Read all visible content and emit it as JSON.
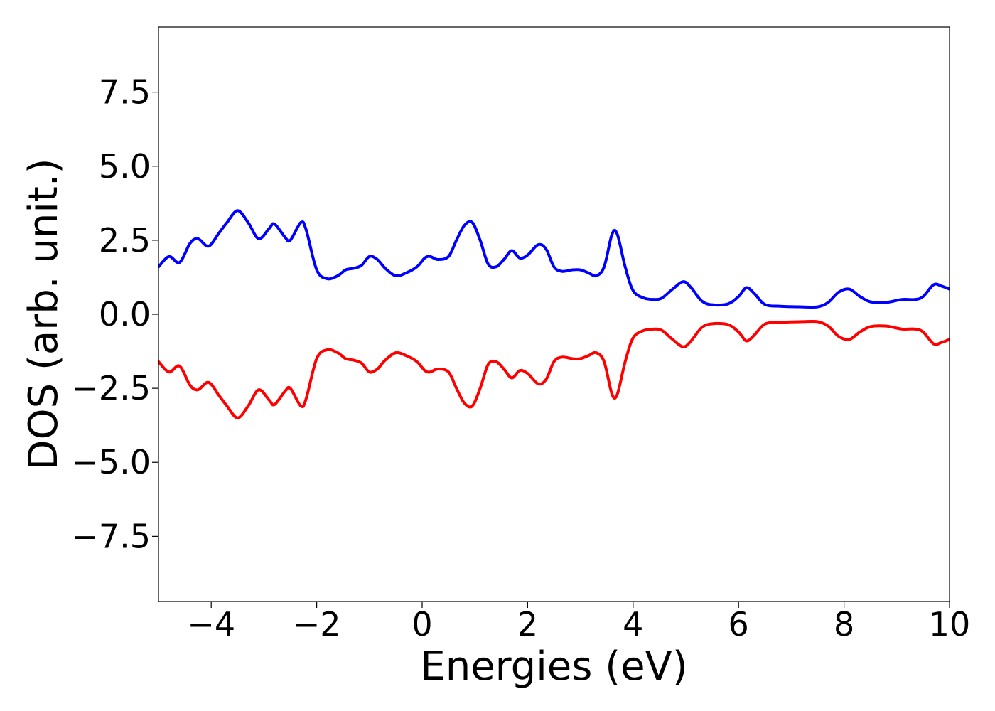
{
  "chart_data": {
    "type": "line",
    "title": "",
    "xlabel": "Energies (eV)",
    "ylabel": "DOS (arb. unit.)",
    "xlim": [
      -5,
      10
    ],
    "ylim": [
      -9.7,
      9.7
    ],
    "grid": false,
    "x_ticks": [
      -4,
      -2,
      0,
      2,
      4,
      6,
      8,
      10
    ],
    "x_tick_labels": [
      "−4",
      "−2",
      "0",
      "2",
      "4",
      "6",
      "8",
      "10"
    ],
    "y_ticks": [
      7.5,
      5.0,
      2.5,
      0.0,
      -2.5,
      -5.0,
      -7.5
    ],
    "y_tick_labels": [
      "7.5",
      "5.0",
      "2.5",
      "0.0",
      "−2.5",
      "−5.0",
      "−7.5"
    ],
    "series": [
      {
        "color": "#0000ff",
        "x": [
          -5.0,
          -4.8,
          -4.6,
          -4.4,
          -4.25,
          -4.05,
          -3.85,
          -3.7,
          -3.5,
          -3.3,
          -3.1,
          -2.9,
          -2.8,
          -2.6,
          -2.5,
          -2.3,
          -2.2,
          -2.0,
          -1.8,
          -1.6,
          -1.45,
          -1.3,
          -1.15,
          -1.0,
          -0.85,
          -0.7,
          -0.5,
          -0.3,
          -0.1,
          0.05,
          0.15,
          0.3,
          0.5,
          0.65,
          0.8,
          0.95,
          1.1,
          1.25,
          1.4,
          1.55,
          1.7,
          1.85,
          2.0,
          2.2,
          2.35,
          2.5,
          2.65,
          2.85,
          3.0,
          3.15,
          3.3,
          3.45,
          3.6,
          3.7,
          3.85,
          4.0,
          4.2,
          4.4,
          4.55,
          4.75,
          4.95,
          5.1,
          5.3,
          5.5,
          5.8,
          6.0,
          6.15,
          6.3,
          6.5,
          6.8,
          7.2,
          7.5,
          7.7,
          7.9,
          8.1,
          8.3,
          8.5,
          8.8,
          9.1,
          9.35,
          9.5,
          9.7,
          9.85,
          10.0
        ],
        "values": [
          1.6,
          1.95,
          1.75,
          2.4,
          2.55,
          2.3,
          2.75,
          3.1,
          3.5,
          3.1,
          2.55,
          2.9,
          3.05,
          2.6,
          2.5,
          3.1,
          2.85,
          1.5,
          1.2,
          1.3,
          1.5,
          1.55,
          1.65,
          1.95,
          1.85,
          1.55,
          1.3,
          1.4,
          1.6,
          1.9,
          1.95,
          1.85,
          1.95,
          2.5,
          3.0,
          3.1,
          2.5,
          1.7,
          1.6,
          1.85,
          2.15,
          1.9,
          2.0,
          2.35,
          2.2,
          1.6,
          1.45,
          1.5,
          1.5,
          1.4,
          1.3,
          1.6,
          2.7,
          2.7,
          1.6,
          0.8,
          0.55,
          0.5,
          0.55,
          0.85,
          1.1,
          0.9,
          0.45,
          0.32,
          0.35,
          0.6,
          0.9,
          0.7,
          0.33,
          0.27,
          0.25,
          0.25,
          0.4,
          0.75,
          0.85,
          0.6,
          0.42,
          0.4,
          0.5,
          0.5,
          0.6,
          1.0,
          0.95,
          0.85
        ]
      },
      {
        "color": "#ff0000",
        "x": [
          -5.0,
          -4.8,
          -4.6,
          -4.4,
          -4.25,
          -4.05,
          -3.85,
          -3.7,
          -3.5,
          -3.3,
          -3.1,
          -2.9,
          -2.8,
          -2.6,
          -2.5,
          -2.3,
          -2.2,
          -2.0,
          -1.8,
          -1.6,
          -1.45,
          -1.3,
          -1.15,
          -1.0,
          -0.85,
          -0.7,
          -0.5,
          -0.3,
          -0.1,
          0.05,
          0.15,
          0.3,
          0.5,
          0.65,
          0.8,
          0.95,
          1.1,
          1.25,
          1.4,
          1.55,
          1.7,
          1.85,
          2.0,
          2.2,
          2.35,
          2.5,
          2.65,
          2.85,
          3.0,
          3.15,
          3.3,
          3.45,
          3.6,
          3.7,
          3.85,
          4.0,
          4.2,
          4.4,
          4.55,
          4.75,
          4.95,
          5.1,
          5.3,
          5.5,
          5.8,
          6.0,
          6.15,
          6.3,
          6.5,
          6.8,
          7.2,
          7.5,
          7.7,
          7.9,
          8.1,
          8.3,
          8.5,
          8.8,
          9.1,
          9.35,
          9.5,
          9.7,
          9.85,
          10.0
        ],
        "values": [
          -1.6,
          -1.95,
          -1.75,
          -2.4,
          -2.55,
          -2.3,
          -2.75,
          -3.1,
          -3.5,
          -3.1,
          -2.55,
          -2.9,
          -3.05,
          -2.6,
          -2.5,
          -3.1,
          -2.85,
          -1.5,
          -1.2,
          -1.3,
          -1.5,
          -1.55,
          -1.65,
          -1.95,
          -1.85,
          -1.55,
          -1.3,
          -1.4,
          -1.6,
          -1.9,
          -1.95,
          -1.85,
          -1.95,
          -2.5,
          -3.0,
          -3.1,
          -2.5,
          -1.7,
          -1.6,
          -1.85,
          -2.15,
          -1.9,
          -2.0,
          -2.35,
          -2.2,
          -1.6,
          -1.45,
          -1.5,
          -1.5,
          -1.4,
          -1.3,
          -1.6,
          -2.7,
          -2.7,
          -1.6,
          -0.8,
          -0.55,
          -0.5,
          -0.55,
          -0.85,
          -1.1,
          -0.9,
          -0.45,
          -0.32,
          -0.35,
          -0.6,
          -0.9,
          -0.7,
          -0.33,
          -0.27,
          -0.25,
          -0.25,
          -0.4,
          -0.75,
          -0.85,
          -0.6,
          -0.42,
          -0.4,
          -0.5,
          -0.5,
          -0.6,
          -1.0,
          -0.95,
          -0.85
        ]
      }
    ]
  }
}
